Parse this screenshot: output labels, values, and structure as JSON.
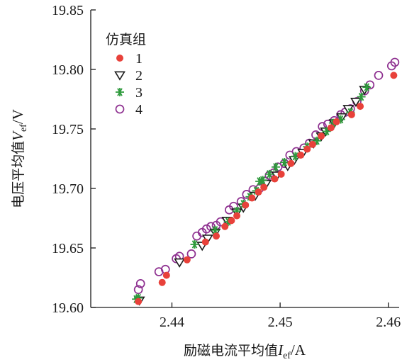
{
  "chart_data": {
    "type": "scatter",
    "xlabel_prefix": "励磁电流平均值",
    "xlabel_var": "I",
    "xlabel_sub": "ef",
    "xlabel_unit": "/A",
    "ylabel_prefix": "电压平均值",
    "ylabel_var": "V",
    "ylabel_sub": "ef",
    "ylabel_unit": "/V",
    "xlim": [
      2.4325,
      2.461
    ],
    "ylim": [
      19.6,
      19.85
    ],
    "xticks": [
      "2.44",
      "2.45",
      "2.46"
    ],
    "yticks": [
      "19.60",
      "19.65",
      "19.70",
      "19.75",
      "19.80",
      "19.85"
    ],
    "legend_title": "仿真组",
    "legend_position": "top-left",
    "series": [
      {
        "name": "1",
        "marker": "filled-circle",
        "color": "#e8413a",
        "points": [
          [
            2.4369,
            19.605
          ],
          [
            2.4391,
            19.621
          ],
          [
            2.4395,
            19.627
          ],
          [
            2.4414,
            19.64
          ],
          [
            2.4431,
            19.655
          ],
          [
            2.4441,
            19.66
          ],
          [
            2.4449,
            19.668
          ],
          [
            2.4455,
            19.673
          ],
          [
            2.446,
            19.677
          ],
          [
            2.4468,
            19.686
          ],
          [
            2.4474,
            19.692
          ],
          [
            2.448,
            19.697
          ],
          [
            2.4485,
            19.701
          ],
          [
            2.4495,
            19.708
          ],
          [
            2.4501,
            19.712
          ],
          [
            2.451,
            19.721
          ],
          [
            2.4519,
            19.728
          ],
          [
            2.4525,
            19.733
          ],
          [
            2.453,
            19.737
          ],
          [
            2.4538,
            19.744
          ],
          [
            2.4547,
            19.751
          ],
          [
            2.4552,
            19.756
          ],
          [
            2.4566,
            19.762
          ],
          [
            2.4574,
            19.769
          ],
          [
            2.4605,
            19.795
          ]
        ]
      },
      {
        "name": "2",
        "marker": "open-triangle-down",
        "color": "#1a1a1a",
        "points": [
          [
            2.437,
            19.606
          ],
          [
            2.4407,
            19.638
          ],
          [
            2.4428,
            19.652
          ],
          [
            2.4433,
            19.658
          ],
          [
            2.444,
            19.663
          ],
          [
            2.4451,
            19.673
          ],
          [
            2.446,
            19.68
          ],
          [
            2.4466,
            19.684
          ],
          [
            2.4477,
            19.694
          ],
          [
            2.4487,
            19.704
          ],
          [
            2.4497,
            19.711
          ],
          [
            2.4507,
            19.719
          ],
          [
            2.4513,
            19.724
          ],
          [
            2.4521,
            19.73
          ],
          [
            2.4531,
            19.738
          ],
          [
            2.4538,
            19.744
          ],
          [
            2.4542,
            19.748
          ],
          [
            2.455,
            19.755
          ],
          [
            2.4557,
            19.76
          ],
          [
            2.4563,
            19.767
          ],
          [
            2.457,
            19.773
          ],
          [
            2.4578,
            19.783
          ]
        ]
      },
      {
        "name": "3",
        "marker": "asterisk",
        "color": "#2e9a3c",
        "points": [
          [
            2.4367,
            19.607
          ],
          [
            2.4369,
            19.608
          ],
          [
            2.4421,
            19.653
          ],
          [
            2.444,
            19.665
          ],
          [
            2.4452,
            19.672
          ],
          [
            2.446,
            19.681
          ],
          [
            2.4466,
            19.687
          ],
          [
            2.4472,
            19.693
          ],
          [
            2.4478,
            19.698
          ],
          [
            2.4481,
            19.706
          ],
          [
            2.4484,
            19.707
          ],
          [
            2.449,
            19.712
          ],
          [
            2.4496,
            19.718
          ],
          [
            2.4504,
            19.722
          ],
          [
            2.4514,
            19.727
          ],
          [
            2.4525,
            19.735
          ],
          [
            2.4534,
            19.74
          ],
          [
            2.4543,
            19.748
          ],
          [
            2.4549,
            19.755
          ],
          [
            2.4556,
            19.758
          ],
          [
            2.4565,
            19.764
          ],
          [
            2.4575,
            19.777
          ],
          [
            2.458,
            19.785
          ]
        ]
      },
      {
        "name": "4",
        "marker": "open-circle",
        "color": "#8e3090",
        "points": [
          [
            2.4369,
            19.615
          ],
          [
            2.4371,
            19.62
          ],
          [
            2.4388,
            19.63
          ],
          [
            2.4394,
            19.632
          ],
          [
            2.4404,
            19.641
          ],
          [
            2.4407,
            19.643
          ],
          [
            2.4418,
            19.645
          ],
          [
            2.4423,
            19.66
          ],
          [
            2.4428,
            19.663
          ],
          [
            2.4432,
            19.666
          ],
          [
            2.4436,
            19.668
          ],
          [
            2.4441,
            19.669
          ],
          [
            2.4445,
            19.672
          ],
          [
            2.4453,
            19.682
          ],
          [
            2.4457,
            19.685
          ],
          [
            2.4464,
            19.689
          ],
          [
            2.4469,
            19.695
          ],
          [
            2.4475,
            19.699
          ],
          [
            2.4481,
            19.7
          ],
          [
            2.4486,
            19.706
          ],
          [
            2.449,
            19.711
          ],
          [
            2.4494,
            19.713
          ],
          [
            2.4498,
            19.718
          ],
          [
            2.4504,
            19.721
          ],
          [
            2.4509,
            19.728
          ],
          [
            2.4515,
            19.731
          ],
          [
            2.4522,
            19.734
          ],
          [
            2.4527,
            19.738
          ],
          [
            2.4533,
            19.745
          ],
          [
            2.4539,
            19.752
          ],
          [
            2.4544,
            19.754
          ],
          [
            2.455,
            19.757
          ],
          [
            2.4556,
            19.762
          ],
          [
            2.456,
            19.764
          ],
          [
            2.4565,
            19.767
          ],
          [
            2.4571,
            19.773
          ],
          [
            2.4578,
            19.782
          ],
          [
            2.4583,
            19.787
          ],
          [
            2.4591,
            19.795
          ],
          [
            2.4603,
            19.803
          ],
          [
            2.4606,
            19.806
          ]
        ]
      }
    ]
  }
}
